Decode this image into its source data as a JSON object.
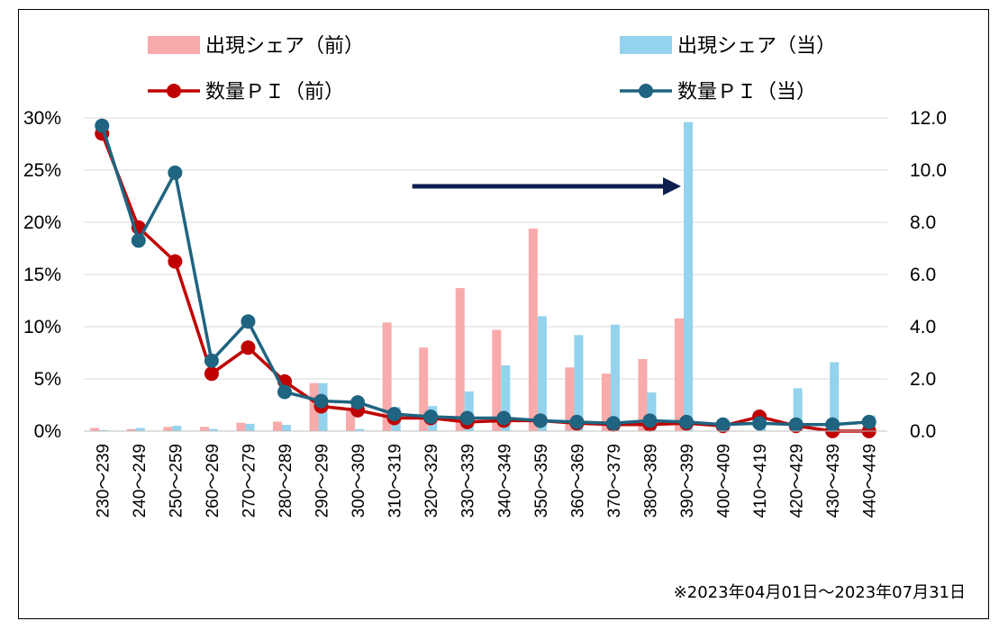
{
  "chart_data": {
    "type": "bar",
    "categories": [
      "230～239",
      "240～249",
      "250～259",
      "260～269",
      "270～279",
      "280～289",
      "290～299",
      "300～309",
      "310～319",
      "320～329",
      "330～339",
      "340～349",
      "350～359",
      "360～369",
      "370～379",
      "380～389",
      "390～399",
      "400～409",
      "410～419",
      "420～429",
      "430～439",
      "440～449"
    ],
    "series": [
      {
        "name": "出現シェア（前）",
        "kind": "bar",
        "axis": "left",
        "color": "#f9aaaa",
        "values": [
          0.3,
          0.2,
          0.4,
          0.4,
          0.8,
          0.9,
          4.6,
          2.0,
          10.4,
          8.0,
          13.7,
          9.7,
          19.4,
          6.1,
          5.5,
          6.9,
          10.8,
          0.0,
          0.0,
          0.0,
          0.0,
          0.0
        ]
      },
      {
        "name": "出現シェア（当）",
        "kind": "bar",
        "axis": "left",
        "color": "#93d3ed",
        "values": [
          0.1,
          0.3,
          0.5,
          0.2,
          0.7,
          0.6,
          4.6,
          0.2,
          2.3,
          2.4,
          3.8,
          6.3,
          11.0,
          9.2,
          10.2,
          3.7,
          29.6,
          0.7,
          1.7,
          4.1,
          6.6,
          1.5
        ]
      },
      {
        "name": "数量ＰＩ（前）",
        "kind": "line",
        "axis": "right",
        "color": "#c00000",
        "values": [
          11.4,
          7.8,
          6.5,
          2.2,
          3.2,
          1.9,
          0.95,
          0.8,
          0.5,
          0.5,
          0.35,
          0.4,
          0.4,
          0.3,
          0.25,
          0.25,
          0.3,
          0.2,
          0.55,
          0.2,
          0.0,
          0.0
        ]
      },
      {
        "name": "数量ＰＩ（当）",
        "kind": "line",
        "axis": "right",
        "color": "#1f6480",
        "values": [
          11.7,
          7.3,
          9.9,
          2.7,
          4.2,
          1.5,
          1.15,
          1.1,
          0.65,
          0.55,
          0.5,
          0.5,
          0.4,
          0.35,
          0.3,
          0.4,
          0.35,
          0.25,
          0.3,
          0.25,
          0.25,
          0.35
        ]
      }
    ],
    "y_left": {
      "range": [
        0,
        30
      ],
      "ticks": [
        "0%",
        "5%",
        "10%",
        "15%",
        "20%",
        "25%",
        "30%"
      ]
    },
    "y_right": {
      "range": [
        0,
        12
      ],
      "ticks": [
        "0.0",
        "2.0",
        "4.0",
        "6.0",
        "8.0",
        "10.0",
        "12.0"
      ]
    },
    "grid": true,
    "legend_position": "top",
    "annotation_arrow": {
      "from_category": "310～319",
      "to_category": "390～399",
      "color": "#0d1f4e"
    },
    "note": "※2023年04月01日～2023年07月31日"
  }
}
